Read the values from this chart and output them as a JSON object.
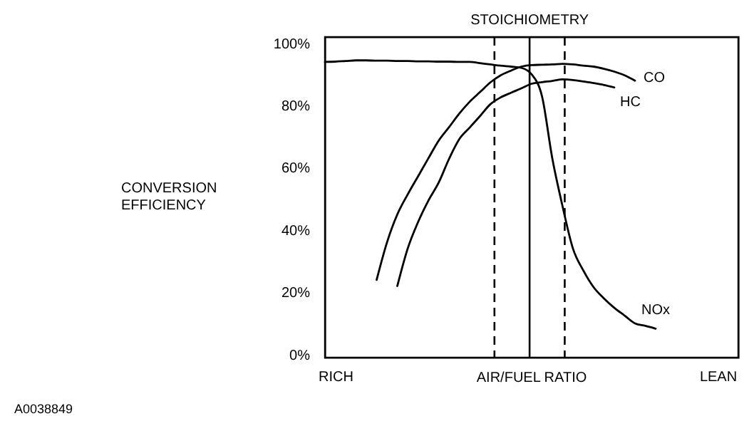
{
  "chart_data": {
    "type": "line",
    "ylabel": "CONVERSION EFFICIENCY",
    "xlabel": "AIR/FUEL RATIO",
    "categories": [
      null,
      "RICH",
      null,
      null,
      null,
      null,
      null,
      null,
      null,
      null,
      null,
      null,
      null,
      null,
      null,
      null,
      null,
      null,
      null,
      null,
      null,
      null,
      null,
      null,
      null,
      null,
      null,
      null,
      null,
      null,
      null,
      null,
      null,
      null,
      null,
      null,
      null,
      null,
      "LEAN",
      null,
      null
    ],
    "ylim": [
      -1,
      102
    ],
    "yticks": [
      {
        "value": 0,
        "label": "0%"
      },
      {
        "value": 20,
        "label": "20%"
      },
      {
        "value": 40,
        "label": "40%"
      },
      {
        "value": 60,
        "label": "60%"
      },
      {
        "value": 80,
        "label": "80%"
      },
      {
        "value": 100,
        "label": "100%"
      }
    ],
    "grid": false,
    "marker": "none",
    "line_style": "solid",
    "series": [
      {
        "name": "CO",
        "color": "#000000",
        "values": [
          null,
          null,
          null,
          null,
          null,
          24,
          36,
          45,
          51.4,
          57.2,
          63,
          68.7,
          73,
          77.4,
          81.2,
          84.3,
          87.4,
          89.7,
          91.2,
          92.5,
          93,
          93.1,
          93.2,
          93.4,
          93.2,
          92.8,
          92.5,
          91.8,
          90.9,
          89.7,
          88,
          null,
          null,
          null,
          null,
          null,
          null,
          null,
          null,
          null,
          null
        ]
      },
      {
        "name": "HC",
        "color": "#000000",
        "values": [
          null,
          null,
          null,
          null,
          null,
          null,
          null,
          22,
          34,
          42.5,
          49.4,
          55.2,
          62.8,
          69.2,
          72.9,
          76.6,
          80.4,
          82.6,
          84.1,
          85.5,
          87,
          87.5,
          87.9,
          88.4,
          88.2,
          87.7,
          87.2,
          86.6,
          85.8,
          null,
          null,
          null,
          null,
          null,
          null,
          null,
          null,
          null,
          null,
          null,
          null
        ]
      },
      {
        "name": "NOx",
        "color": "#000000",
        "values": [
          94,
          94.1,
          94.3,
          94.5,
          94.5,
          94.4,
          94.4,
          94.3,
          94.3,
          94.2,
          94.2,
          94.1,
          94.1,
          94,
          94,
          93.6,
          93.2,
          92.8,
          92.5,
          92.1,
          90,
          83,
          63,
          47.5,
          34,
          27,
          21.6,
          18,
          15,
          12.5,
          10,
          9.2,
          8.3,
          null,
          null,
          null,
          null,
          null,
          null,
          null,
          null
        ]
      }
    ],
    "annotations": [
      "STOICHIOMETRY",
      "A0038849"
    ]
  }
}
